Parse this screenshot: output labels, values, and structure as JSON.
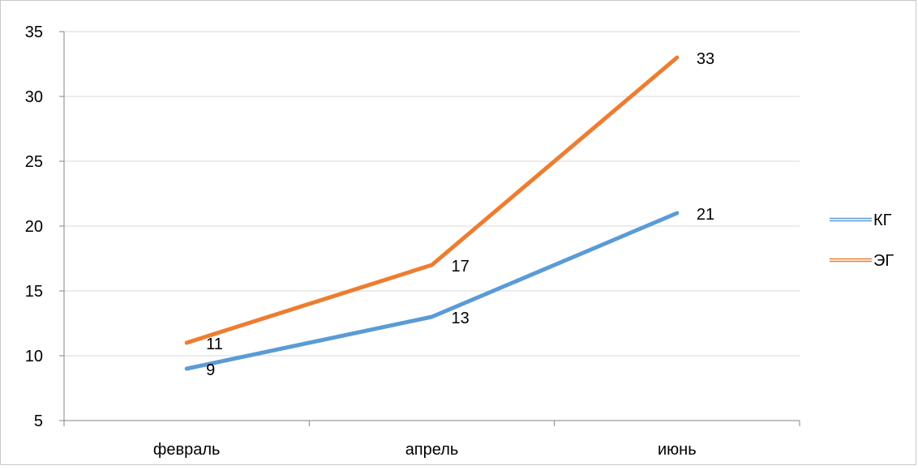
{
  "chart_data": {
    "type": "line",
    "categories": [
      "февраль",
      "апрель",
      "июнь"
    ],
    "series": [
      {
        "name": "КГ",
        "values": [
          9,
          13,
          21
        ],
        "color": "#5b9bd5"
      },
      {
        "name": "ЭГ",
        "values": [
          11,
          17,
          33
        ],
        "color": "#ed7d31"
      }
    ],
    "y_ticks": [
      "5",
      "10",
      "15",
      "20",
      "25",
      "30",
      "35"
    ],
    "ylim": [
      5,
      35
    ],
    "grid": true,
    "legend_position": "right",
    "data_labels": true
  }
}
